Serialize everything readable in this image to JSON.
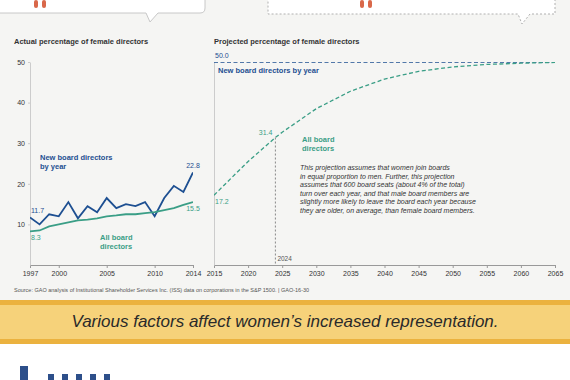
{
  "chart_data": [
    {
      "type": "line",
      "title": "Actual percentage of female directors",
      "x": [
        1997,
        1998,
        1999,
        2000,
        2001,
        2002,
        2003,
        2004,
        2005,
        2006,
        2007,
        2008,
        2009,
        2010,
        2011,
        2012,
        2013,
        2014
      ],
      "series": [
        {
          "name": "New board directors by year",
          "color": "#1d4f91",
          "line_style": "solid",
          "values": [
            11.7,
            10.0,
            12.5,
            12.0,
            15.5,
            11.5,
            14.5,
            13.0,
            16.5,
            14.0,
            15.0,
            14.5,
            15.5,
            12.0,
            16.5,
            19.5,
            18.0,
            22.8
          ],
          "value_labels": [
            "11.7",
            null,
            null,
            null,
            null,
            null,
            null,
            null,
            null,
            null,
            null,
            null,
            null,
            null,
            null,
            null,
            null,
            "22.8"
          ]
        },
        {
          "name": "All board directors",
          "color": "#3a9e86",
          "line_style": "solid",
          "values": [
            8.3,
            8.5,
            9.5,
            10.0,
            10.5,
            11.0,
            11.2,
            11.5,
            12.0,
            12.2,
            12.5,
            12.5,
            12.8,
            13.0,
            13.5,
            14.0,
            14.8,
            15.5
          ],
          "value_labels": [
            "8.3",
            null,
            null,
            null,
            null,
            null,
            null,
            null,
            null,
            null,
            null,
            null,
            null,
            null,
            null,
            null,
            null,
            "15.5"
          ]
        }
      ],
      "xlim": [
        1997,
        2014
      ],
      "xticks": [
        1997,
        2000,
        2005,
        2010,
        2014
      ],
      "ylim": [
        0,
        50
      ],
      "yticks": [
        10,
        20,
        30,
        40,
        50
      ],
      "grid": false,
      "data_labels": true
    },
    {
      "type": "line",
      "title": "Projected percentage of female directors",
      "x": [
        2015,
        2020,
        2024,
        2025,
        2030,
        2035,
        2040,
        2045,
        2050,
        2055,
        2060,
        2065
      ],
      "series": [
        {
          "name": "New board directors by year",
          "color": "#1d4f91",
          "line_style": "dashed",
          "values": [
            50,
            50,
            50,
            50,
            50,
            50,
            50,
            50,
            50,
            50,
            50,
            50
          ],
          "value_labels": [
            "50.0",
            null,
            null,
            null,
            null,
            null,
            null,
            null,
            null,
            null,
            null,
            null
          ]
        },
        {
          "name": "All board directors",
          "color": "#3a9e86",
          "line_style": "dashed",
          "values": [
            17.2,
            25.5,
            31.4,
            32.7,
            38.5,
            42.8,
            45.8,
            47.7,
            48.8,
            49.4,
            49.7,
            49.9
          ],
          "value_labels": [
            "17.2",
            null,
            "31.4",
            null,
            null,
            null,
            null,
            null,
            null,
            null,
            null,
            null
          ]
        }
      ],
      "xlim": [
        2015,
        2065
      ],
      "xticks": [
        2015,
        2020,
        2025,
        2030,
        2035,
        2040,
        2045,
        2050,
        2055,
        2060,
        2065
      ],
      "ylim": [
        0,
        50
      ],
      "tick_labels": "x",
      "grid": false,
      "data_labels": true,
      "annotations": [
        {
          "x": 2024,
          "y": 31.4,
          "text": "2024"
        }
      ],
      "note": [
        "This projection assumes that women join boards",
        "in equal proportion to men. Further, this projection",
        "assumes that 600 board seats (about 4% of the total)",
        "turn over each year, and that male board members are",
        "slightly more likely to leave the board each year because",
        "they are older, on average, than female board members."
      ]
    }
  ],
  "source": "Source: GAO analysis of Institutional Shareholder Services Inc. (ISS) data on corporations in the S&P 1500.  |  GAO-16-30",
  "banner": "Various factors affect women’s increased representation."
}
